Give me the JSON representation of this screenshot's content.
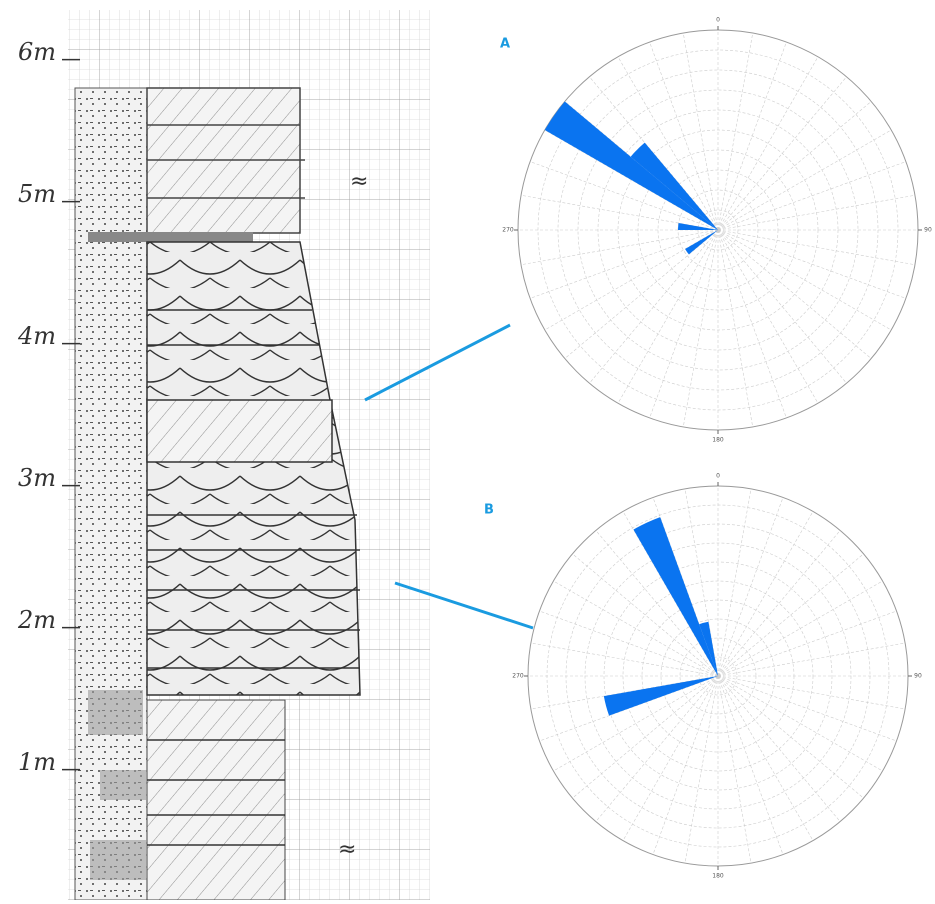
{
  "log": {
    "ylim": [
      0.3,
      6.3
    ],
    "yticks": [
      {
        "value": 6,
        "label": "6m"
      },
      {
        "value": 5,
        "label": "5m"
      },
      {
        "value": 4,
        "label": "4m"
      },
      {
        "value": 3,
        "label": "3m"
      },
      {
        "value": 2,
        "label": "2m"
      },
      {
        "value": 1,
        "label": "1m"
      }
    ]
  },
  "chart_data": [
    {
      "type": "rose",
      "title": "A",
      "rlim": [
        0,
        1
      ],
      "bin_width": 10,
      "color": "#0a74f0",
      "direction_ticks": [
        0,
        90,
        180,
        270
      ],
      "directions": [
        305,
        315,
        275,
        235
      ],
      "values": [
        1.0,
        0.57,
        0.2,
        0.19
      ]
    },
    {
      "type": "rose",
      "title": "B",
      "rlim": [
        0,
        1
      ],
      "bin_width": 10,
      "color": "#0a74f0",
      "direction_ticks": [
        0,
        90,
        180,
        270
      ],
      "directions": [
        335,
        345,
        255
      ],
      "values": [
        0.89,
        0.29,
        0.61
      ]
    }
  ]
}
